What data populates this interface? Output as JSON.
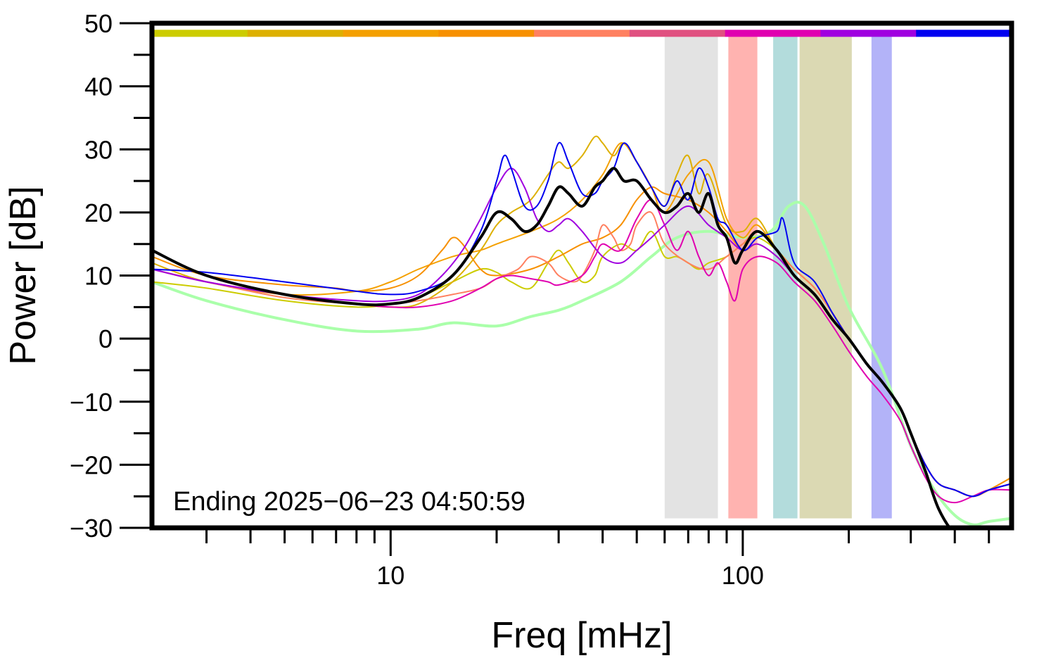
{
  "chart_data": {
    "type": "line",
    "xlabel": "Freq [mHz]",
    "ylabel": "Power [dB]",
    "x_scale": "log",
    "xlim": [
      2.1,
      580
    ],
    "ylim": [
      -30,
      50
    ],
    "grid": false,
    "x_ticks": [
      {
        "value": 10,
        "label": "10"
      },
      {
        "value": 100,
        "label": "100"
      }
    ],
    "y_ticks": [
      {
        "value": 50,
        "label": "50"
      },
      {
        "value": 40,
        "label": "40"
      },
      {
        "value": 30,
        "label": "30"
      },
      {
        "value": 20,
        "label": "20"
      },
      {
        "value": 10,
        "label": "10"
      },
      {
        "value": 0,
        "label": "0"
      },
      {
        "value": -10,
        "label": "−10"
      },
      {
        "value": -20,
        "label": "−20"
      },
      {
        "value": -30,
        "label": "−30"
      }
    ],
    "annotation": "Ending 2025−06−23 04:50:59",
    "time_bar": {
      "y": 48.4,
      "colors": [
        "#cccc00",
        "#ddb000",
        "#f4a000",
        "#f79000",
        "#ff8060",
        "#e05080",
        "#e000b0",
        "#a000e0",
        "#0000f0"
      ]
    },
    "bands": [
      {
        "x0": 60,
        "x1": 85,
        "color": "#e3e3e3"
      },
      {
        "x0": 91,
        "x1": 110,
        "color": "#ffb3b0"
      },
      {
        "x0": 122,
        "x1": 143,
        "color": "#b3dcdc"
      },
      {
        "x0": 145,
        "x1": 204,
        "color": "#dbd9b3"
      },
      {
        "x0": 232,
        "x1": 265,
        "color": "#b3b3f8"
      }
    ],
    "series": [
      {
        "color": "#aaffaa",
        "width": 4,
        "x": [
          2.1,
          3,
          5,
          8,
          12,
          15,
          20,
          25,
          30,
          35,
          45,
          55,
          65,
          80,
          100,
          120,
          135,
          150,
          170,
          200,
          250,
          300,
          350,
          400,
          450,
          500,
          580
        ],
        "y": [
          9,
          6,
          3,
          1.2,
          1.5,
          2.5,
          2.0,
          3.5,
          4.5,
          6,
          9,
          13,
          16,
          17,
          16,
          17,
          21,
          21,
          15,
          5,
          -5,
          -17,
          -24,
          -28,
          -29.5,
          -29,
          -28.5
        ]
      },
      {
        "color": "#cccc00",
        "width": 2,
        "x": [
          2.1,
          3,
          5,
          8,
          10,
          12,
          15,
          18,
          20,
          22,
          25,
          28,
          30,
          32,
          35,
          38,
          40,
          45,
          50,
          55,
          60,
          65,
          70,
          75,
          80,
          90,
          100,
          110,
          125,
          140,
          160,
          180,
          200,
          225,
          250,
          280,
          300,
          330,
          360,
          400,
          450,
          500,
          580
        ],
        "y": [
          9,
          8,
          6,
          5,
          5.5,
          6.5,
          9,
          11,
          10.5,
          9,
          8,
          12,
          14,
          12,
          9,
          10,
          13,
          15,
          14,
          17,
          13,
          13,
          12,
          11,
          12,
          13,
          15,
          16,
          14,
          11,
          8,
          4,
          0,
          -4,
          -7,
          -11,
          -15,
          -20,
          -23,
          -24,
          -25,
          -24,
          -23
        ]
      },
      {
        "color": "#ddb000",
        "width": 2,
        "x": [
          2.1,
          3,
          5,
          8,
          10,
          12,
          15,
          18,
          20,
          22,
          25,
          28,
          30,
          32,
          35,
          38,
          40,
          43,
          46,
          50,
          55,
          60,
          65,
          70,
          75,
          80,
          90,
          100,
          110,
          125,
          140,
          160,
          180,
          200,
          225,
          250,
          280,
          300,
          330,
          360,
          400,
          450,
          500,
          580
        ],
        "y": [
          12,
          9,
          7,
          5.5,
          5,
          5.5,
          9,
          14,
          18,
          20,
          22,
          26,
          28,
          27,
          29,
          32,
          31,
          29,
          31,
          28,
          24,
          21,
          26,
          29,
          23,
          26,
          18,
          17,
          19,
          14,
          11,
          8,
          4,
          0,
          -4,
          -7,
          -11,
          -15,
          -20,
          -23,
          -24,
          -25,
          -24,
          -23
        ]
      },
      {
        "color": "#f4a000",
        "width": 2,
        "x": [
          2.1,
          3,
          5,
          8,
          10,
          12,
          15,
          18,
          20,
          25,
          30,
          35,
          40,
          45,
          50,
          55,
          60,
          70,
          80,
          90,
          100,
          110,
          125,
          140,
          160,
          180,
          200,
          225,
          250,
          280,
          300,
          330,
          360,
          400,
          450,
          500,
          580
        ],
        "y": [
          11,
          9,
          7,
          7.5,
          9,
          11,
          13,
          14,
          15,
          17,
          19,
          22,
          26,
          31,
          28,
          24,
          20,
          26,
          28,
          19,
          16,
          18,
          14,
          11,
          8,
          4,
          0,
          -4,
          -7,
          -11,
          -15,
          -20,
          -23,
          -24,
          -25,
          -24,
          -22
        ]
      },
      {
        "color": "#f79000",
        "width": 2,
        "x": [
          2.1,
          3,
          5,
          7,
          8,
          10,
          12,
          14,
          15,
          16,
          18,
          20,
          25,
          30,
          35,
          40,
          45,
          50,
          55,
          60,
          70,
          80,
          90,
          100,
          110,
          125,
          140,
          160,
          180,
          200,
          225,
          250,
          280,
          300,
          330,
          360,
          400,
          450,
          500,
          580
        ],
        "y": [
          13,
          10,
          8.5,
          8,
          7.5,
          8,
          10,
          14,
          16,
          15,
          11,
          10,
          11,
          13,
          15,
          16,
          18,
          22,
          24,
          23,
          22,
          20,
          17,
          14,
          15,
          13,
          10,
          7,
          3,
          0,
          -4,
          -7,
          -11,
          -15,
          -20,
          -23,
          -24,
          -25,
          -24,
          -22
        ]
      },
      {
        "color": "#ff8060",
        "width": 2,
        "x": [
          2.1,
          3,
          5,
          8,
          10,
          12,
          15,
          18,
          20,
          23,
          25,
          28,
          30,
          33,
          35,
          38,
          40,
          43,
          45,
          48,
          50,
          55,
          60,
          70,
          80,
          90,
          100,
          110,
          125,
          140,
          160,
          180,
          200,
          225,
          250,
          280,
          300,
          330,
          360,
          400,
          450,
          500,
          580
        ],
        "y": [
          11,
          9,
          6.5,
          5.5,
          5.5,
          6,
          7,
          8,
          9.5,
          11,
          13,
          12,
          10,
          9,
          10,
          14,
          18,
          16,
          14,
          15,
          18,
          20,
          15,
          12,
          11,
          13,
          15,
          17,
          14,
          11,
          8,
          4,
          0,
          -4,
          -7,
          -11,
          -15,
          -20,
          -23,
          -24,
          -25,
          -24,
          -23
        ]
      },
      {
        "color": "#e000b0",
        "width": 2,
        "x": [
          2.1,
          3,
          5,
          8,
          10,
          12,
          15,
          18,
          20,
          22,
          25,
          28,
          30,
          35,
          38,
          40,
          45,
          50,
          55,
          60,
          65,
          70,
          75,
          80,
          85,
          90,
          95,
          100,
          110,
          125,
          140,
          160,
          180,
          200,
          225,
          250,
          280,
          300,
          330,
          360,
          400,
          450,
          500,
          580
        ],
        "y": [
          11,
          9,
          7,
          5.5,
          5,
          5,
          6,
          8,
          9.5,
          10,
          9.5,
          9,
          8.5,
          10,
          13,
          15,
          14,
          19,
          22,
          18,
          14,
          17,
          13,
          10,
          12,
          9,
          6,
          11,
          13,
          12,
          9,
          6,
          2,
          -2,
          -6,
          -9,
          -13,
          -17,
          -22,
          -25,
          -26,
          -25,
          -24,
          -24
        ]
      },
      {
        "color": "#a000e0",
        "width": 2,
        "x": [
          2.1,
          3,
          5,
          8,
          10,
          12,
          14,
          16,
          18,
          20,
          22,
          24,
          26,
          28,
          30,
          32,
          35,
          40,
          45,
          50,
          55,
          60,
          70,
          80,
          90,
          100,
          110,
          125,
          140,
          160,
          180,
          200,
          225,
          250,
          280,
          300,
          330,
          360,
          400,
          450,
          500,
          580
        ],
        "y": [
          11,
          9,
          7,
          6,
          6,
          7,
          10,
          14,
          19,
          24,
          27,
          24,
          19,
          17,
          18,
          19,
          17,
          13,
          12,
          14,
          16,
          18,
          21,
          18,
          16,
          14,
          15,
          13,
          10,
          7,
          3,
          0,
          -4,
          -7,
          -11,
          -15,
          -20,
          -23,
          -24,
          -25,
          -24,
          -23
        ]
      },
      {
        "color": "#0000f0",
        "width": 2,
        "x": [
          2.1,
          3,
          5,
          8,
          10,
          12,
          15,
          18,
          20,
          21,
          22,
          24,
          26,
          28,
          30,
          32,
          35,
          38,
          40,
          43,
          46,
          50,
          55,
          60,
          65,
          70,
          75,
          80,
          85,
          90,
          100,
          110,
          125,
          130,
          140,
          160,
          180,
          200,
          225,
          250,
          280,
          300,
          330,
          360,
          400,
          450,
          500,
          580
        ],
        "y": [
          11,
          10.5,
          9,
          7.5,
          7,
          7.5,
          10,
          17,
          25,
          29,
          27,
          21,
          21,
          25,
          31,
          28,
          23,
          23,
          25,
          27,
          31,
          28,
          24,
          21,
          25,
          22,
          27,
          24,
          19,
          18,
          14,
          16,
          17,
          19,
          12,
          9,
          4,
          0,
          -4,
          -7,
          -11,
          -15,
          -20,
          -23,
          -24,
          -25,
          -24,
          -23
        ]
      },
      {
        "color": "#000000",
        "width": 4,
        "x": [
          2.1,
          3,
          5,
          8,
          10,
          12,
          15,
          18,
          20,
          22,
          24,
          26,
          28,
          30,
          32,
          35,
          38,
          40,
          43,
          46,
          50,
          55,
          60,
          65,
          70,
          75,
          80,
          85,
          90,
          95,
          100,
          110,
          125,
          140,
          160,
          180,
          200,
          225,
          250,
          280,
          300,
          330,
          360,
          400,
          450,
          500,
          580
        ],
        "y": [
          14,
          10,
          7,
          5.5,
          5.5,
          6.5,
          10,
          16,
          20,
          19,
          17,
          18,
          21,
          24,
          23,
          21,
          24,
          25,
          27,
          25,
          25,
          22,
          20,
          21,
          23,
          20,
          23,
          18,
          16,
          12,
          14,
          17,
          14,
          10,
          7,
          3,
          0,
          -4,
          -7,
          -11,
          -15,
          -21,
          -27,
          -31,
          -33,
          -35,
          -37
        ]
      }
    ]
  }
}
